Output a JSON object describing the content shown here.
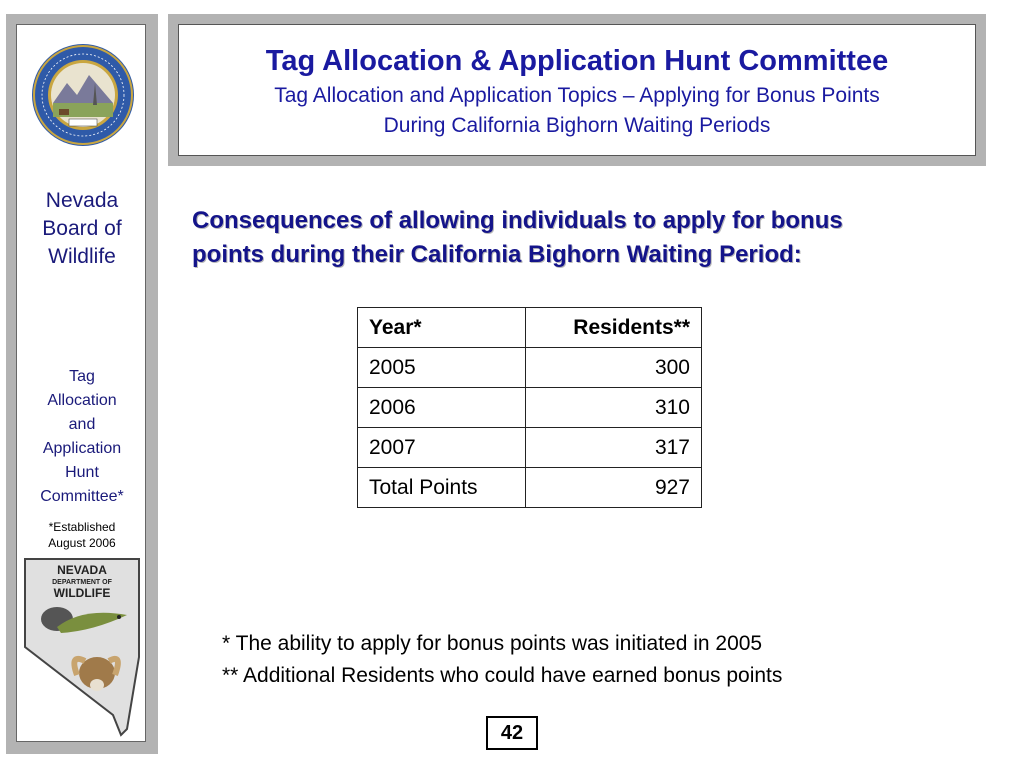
{
  "sidebar": {
    "seal_text": "THE GREAT SEAL OF THE STATE OF NEVADA",
    "seal_motto": "ALL FOR OUR COUNTRY",
    "board_name": "Nevada\nBoard of\nWildlife",
    "committee_name": "Tag\nAllocation\nand\nApplication\nHunt\nCommittee*",
    "established": "*Established\nAugust 2006",
    "logo_line1": "NEVADA",
    "logo_line2": "DEPARTMENT OF",
    "logo_line3": "WILDLIFE"
  },
  "header": {
    "title": "Tag Allocation & Application Hunt Committee",
    "subtitle_line1": "Tag Allocation and Application Topics – Applying for Bonus Points",
    "subtitle_line2": "During California Bighorn Waiting Periods"
  },
  "main": {
    "heading_line1": "Consequences of allowing individuals to apply for bonus",
    "heading_line2": "points during their California Bighorn Waiting Period:",
    "table": {
      "headers": [
        "Year*",
        "Residents**"
      ],
      "rows": [
        [
          "2005",
          "300"
        ],
        [
          "2006",
          "310"
        ],
        [
          "2007",
          "317"
        ],
        [
          "Total Points",
          "927"
        ]
      ]
    },
    "footnote1": "* The ability to apply for bonus points was initiated in 2005",
    "footnote2": "** Additional Residents who could have earned bonus points"
  },
  "page_number": "42",
  "colors": {
    "title": "#1a1aa0",
    "heading": "#14148a",
    "frame": "#b3b3b3"
  }
}
